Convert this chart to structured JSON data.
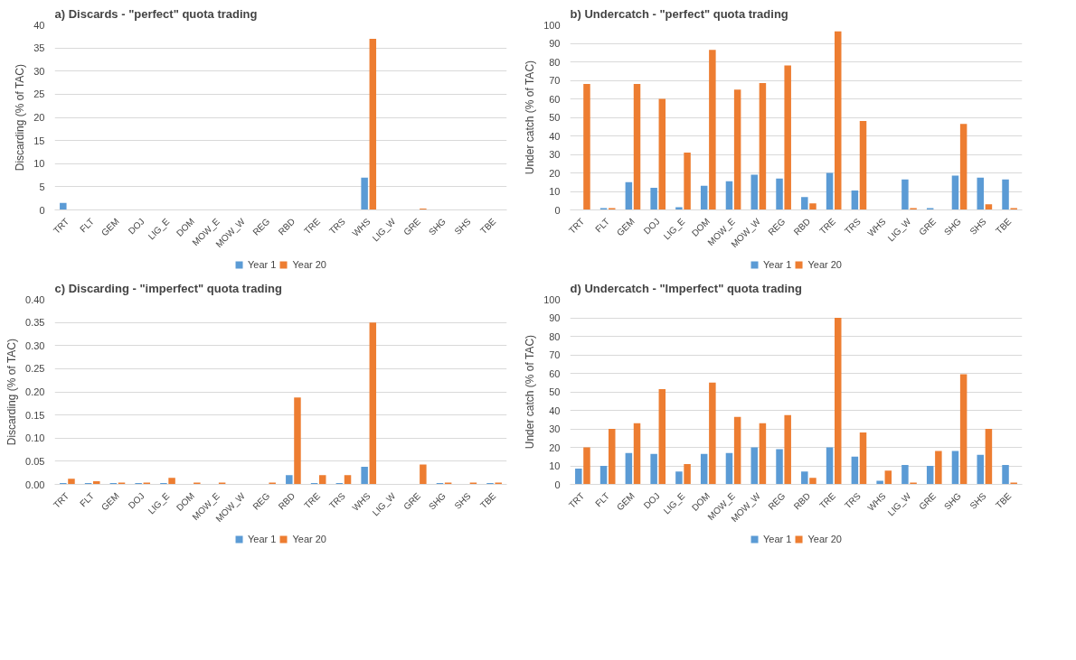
{
  "chart_data": [
    {
      "type": "bar",
      "title": "a) Discards - \"perfect\" quota trading",
      "ylabel": "Discarding (% of TAC)",
      "categories": [
        "TRT",
        "FLT",
        "GEM",
        "DOJ",
        "LIG_E",
        "DOM",
        "MOW_E",
        "MOW_W",
        "REG",
        "RBD",
        "TRE",
        "TRS",
        "WHS",
        "LIG_W",
        "GRE",
        "SHG",
        "SHS",
        "TBE"
      ],
      "series": [
        {
          "name": "Year 1",
          "color": "#5b9bd5",
          "values": [
            1.5,
            0,
            0,
            0,
            0,
            0,
            0,
            0,
            0,
            0,
            0,
            0,
            7,
            0,
            0,
            0,
            0,
            0
          ]
        },
        {
          "name": "Year 20",
          "color": "#ed7d31",
          "values": [
            0,
            0,
            0,
            0,
            0,
            0,
            0,
            0,
            0,
            0,
            0,
            0,
            37,
            0,
            0.3,
            0,
            0,
            0
          ]
        }
      ],
      "ylim": [
        0,
        40
      ],
      "yticks": [
        0,
        5,
        10,
        15,
        20,
        25,
        30,
        35,
        40
      ],
      "grid": "y",
      "legend": "bottom"
    },
    {
      "type": "bar",
      "title": "b) Undercatch - \"perfect\" quota trading",
      "ylabel": "Under catch (% of TAC)",
      "categories": [
        "TRT",
        "FLT",
        "GEM",
        "DOJ",
        "LIG_E",
        "DOM",
        "MOW_E",
        "MOW_W",
        "REG",
        "RBD",
        "TRE",
        "TRS",
        "WHS",
        "LIG_W",
        "GRE",
        "SHG",
        "SHS",
        "TBE"
      ],
      "series": [
        {
          "name": "Year 1",
          "color": "#5b9bd5",
          "values": [
            0,
            1,
            15,
            12,
            1.5,
            13,
            15.5,
            19,
            17,
            7,
            20,
            10.5,
            0,
            16.5,
            1,
            18.5,
            17.5,
            16.5
          ]
        },
        {
          "name": "Year 20",
          "color": "#ed7d31",
          "values": [
            68,
            1,
            68,
            60,
            31,
            86.5,
            65,
            68.5,
            78,
            3.5,
            96.5,
            48,
            0,
            1,
            0,
            46.5,
            3,
            1
          ]
        }
      ],
      "ylim": [
        0,
        100
      ],
      "yticks": [
        0,
        10,
        20,
        30,
        40,
        50,
        60,
        70,
        80,
        90,
        100
      ],
      "grid": "y",
      "legend": "bottom"
    },
    {
      "type": "bar",
      "title": "c)  Discarding - \"imperfect\" quota trading",
      "ylabel": "Discarding (% of TAC)",
      "categories": [
        "TRT",
        "FLT",
        "GEM",
        "DOJ",
        "LIG_E",
        "DOM",
        "MOW_E",
        "MOW_W",
        "REG",
        "RBD",
        "TRE",
        "TRS",
        "WHS",
        "LIG_W",
        "GRE",
        "SHG",
        "SHS",
        "TBE"
      ],
      "series": [
        {
          "name": "Year 1",
          "color": "#5b9bd5",
          "values": [
            0.003,
            0.003,
            0.003,
            0.003,
            0.003,
            0,
            0,
            0,
            0,
            0.02,
            0.003,
            0.003,
            0.038,
            0,
            0,
            0.003,
            0,
            0.003
          ]
        },
        {
          "name": "Year 20",
          "color": "#ed7d31",
          "values": [
            0.012,
            0.007,
            0.004,
            0.004,
            0.014,
            0.004,
            0.004,
            0,
            0.004,
            0.188,
            0.02,
            0.02,
            0.35,
            0,
            0.043,
            0.004,
            0.004,
            0.004
          ]
        }
      ],
      "ylim": [
        0,
        0.4
      ],
      "yticks": [
        {
          "value": 0,
          "label": "0.00"
        },
        {
          "value": 0.05,
          "label": "0.05"
        },
        {
          "value": 0.1,
          "label": "0.10"
        },
        {
          "value": 0.15,
          "label": "0.15"
        },
        {
          "value": 0.2,
          "label": "0.20"
        },
        {
          "value": 0.25,
          "label": "0.25"
        },
        {
          "value": 0.3,
          "label": "0.30"
        },
        {
          "value": 0.35,
          "label": "0.35"
        },
        {
          "value": 0.4,
          "label": "0.40"
        }
      ],
      "grid": "y",
      "legend": "bottom"
    },
    {
      "type": "bar",
      "title": "d) Undercatch - \"Imperfect\" quota trading",
      "ylabel": "Under catch (% of TAC)",
      "categories": [
        "TRT",
        "FLT",
        "GEM",
        "DOJ",
        "LIG_E",
        "DOM",
        "MOW_E",
        "MOW_W",
        "REG",
        "RBD",
        "TRE",
        "TRS",
        "WHS",
        "LIG_W",
        "GRE",
        "SHG",
        "SHS",
        "TBE"
      ],
      "series": [
        {
          "name": "Year 1",
          "color": "#5b9bd5",
          "values": [
            8.5,
            10,
            17,
            16.5,
            7,
            16.5,
            17,
            20,
            19,
            7,
            20,
            15,
            2,
            10.5,
            10,
            18,
            16,
            10.5
          ]
        },
        {
          "name": "Year 20",
          "color": "#ed7d31",
          "values": [
            20,
            30,
            33,
            51.5,
            11,
            55,
            36.5,
            33,
            37.5,
            3.5,
            90,
            28,
            7.5,
            1,
            18,
            59.5,
            30,
            1
          ]
        }
      ],
      "ylim": [
        0,
        100
      ],
      "yticks": [
        0,
        10,
        20,
        30,
        40,
        50,
        60,
        70,
        80,
        90,
        100
      ],
      "grid": "y",
      "legend": "bottom"
    }
  ]
}
